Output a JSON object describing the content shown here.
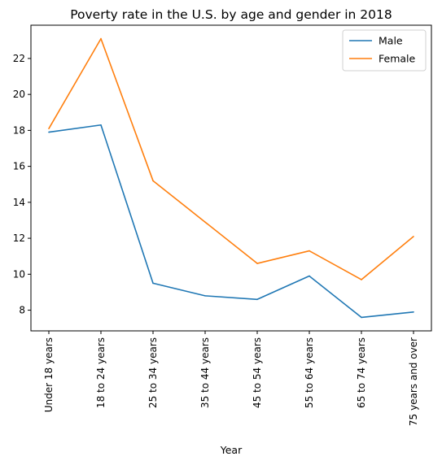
{
  "chart_data": {
    "type": "line",
    "title": "Poverty rate in the U.S. by age and gender in 2018",
    "xlabel": "Year",
    "ylabel": "",
    "categories": [
      "Under 18 years",
      "18 to 24 years",
      "25 to 34 years",
      "35 to 44 years",
      "45 to 54 years",
      "55 to 64 years",
      "65 to 74 years",
      "75 years and over"
    ],
    "series": [
      {
        "name": "Male",
        "color": "#1f77b4",
        "values": [
          17.9,
          18.3,
          9.5,
          8.8,
          8.6,
          9.9,
          7.6,
          7.9
        ]
      },
      {
        "name": "Female",
        "color": "#ff7f0e",
        "values": [
          18.1,
          23.1,
          15.2,
          12.9,
          10.6,
          11.3,
          9.7,
          12.1
        ]
      }
    ],
    "ylim": [
      6.85,
      23.85
    ],
    "yticks": [
      8,
      10,
      12,
      14,
      16,
      18,
      20,
      22
    ],
    "grid": false,
    "legend": "top-right"
  }
}
